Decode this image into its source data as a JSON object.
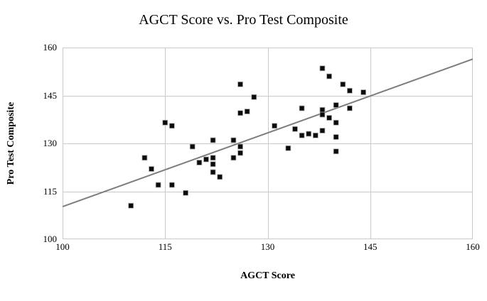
{
  "chart_data": {
    "type": "scatter",
    "title": "AGCT Score vs. Pro Test Composite",
    "xlabel": "AGCT Score",
    "ylabel": "Pro Test Composite",
    "xlim": [
      100,
      160
    ],
    "ylim": [
      100,
      160
    ],
    "x_ticks": [
      "100",
      "115",
      "130",
      "145",
      "160"
    ],
    "y_ticks": [
      "100",
      "115",
      "130",
      "145",
      "160"
    ],
    "grid": true,
    "legend": "none",
    "marker": "filled-square",
    "marker_size": 7,
    "colors": {
      "marker_fill": "#0b0b0b",
      "marker_edge": "#b0b0b0",
      "gridline": "#c9c9c9",
      "plot_border": "#c9c9c9",
      "trendline": "#7d7d7d",
      "background": "#ffffff",
      "text": "#000000"
    },
    "trendline": {
      "x1": 100,
      "y1": 110.2,
      "x2": 160,
      "y2": 156.4
    },
    "points": [
      [
        110,
        110.5
      ],
      [
        112,
        125.5
      ],
      [
        113,
        122
      ],
      [
        114,
        117
      ],
      [
        115,
        136.5
      ],
      [
        116,
        135.5
      ],
      [
        116,
        117
      ],
      [
        118,
        114.5
      ],
      [
        119,
        129
      ],
      [
        120,
        124
      ],
      [
        121,
        125
      ],
      [
        122,
        131
      ],
      [
        122,
        125.5
      ],
      [
        122,
        123.5
      ],
      [
        122,
        121
      ],
      [
        123,
        119.5
      ],
      [
        125,
        131
      ],
      [
        125,
        125.5
      ],
      [
        126,
        148.5
      ],
      [
        126,
        139.5
      ],
      [
        126,
        129
      ],
      [
        126,
        127
      ],
      [
        127,
        140
      ],
      [
        128,
        144.5
      ],
      [
        131,
        135.5
      ],
      [
        133,
        128.5
      ],
      [
        134,
        134.5
      ],
      [
        135,
        141
      ],
      [
        135,
        132.5
      ],
      [
        136,
        133
      ],
      [
        137,
        132.5
      ],
      [
        138,
        153.5
      ],
      [
        138,
        140.5
      ],
      [
        138,
        139
      ],
      [
        138,
        134
      ],
      [
        139,
        151
      ],
      [
        139,
        138
      ],
      [
        140,
        142
      ],
      [
        140,
        136.5
      ],
      [
        140,
        132
      ],
      [
        140,
        127.5
      ],
      [
        141,
        148.5
      ],
      [
        142,
        146.5
      ],
      [
        142,
        141
      ],
      [
        144,
        146
      ]
    ]
  }
}
